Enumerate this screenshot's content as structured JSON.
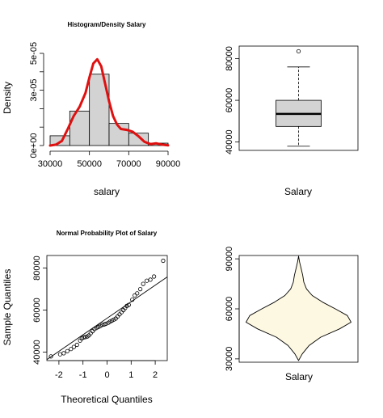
{
  "colors": {
    "bar_fill": "#d3d3d3",
    "density_line": "#e01010",
    "violin_fill": "#fdf8e2",
    "qq_line": "#000000"
  },
  "chart_data": [
    {
      "type": "bar",
      "subtype": "histogram_with_density",
      "title": "Histogram/Density Salary",
      "xlabel": "salary",
      "ylabel": "Density",
      "xlim": [
        30000,
        90000
      ],
      "ylim": [
        0,
        5e-05
      ],
      "x_ticks": [
        30000,
        50000,
        70000,
        90000
      ],
      "x_tick_labels": [
        "30000",
        "50000",
        "70000",
        "90000"
      ],
      "y_ticks": [
        0,
        1e-05,
        2e-05,
        3e-05,
        4e-05,
        5e-05
      ],
      "y_tick_labels": [
        "0e+00",
        "",
        "",
        "3e-05",
        "",
        "5e-05"
      ],
      "bins": [
        {
          "x0": 30000,
          "x1": 40000,
          "value": 5.3e-06
        },
        {
          "x0": 40000,
          "x1": 50000,
          "value": 1.87e-05
        },
        {
          "x0": 50000,
          "x1": 60000,
          "value": 3.87e-05
        },
        {
          "x0": 60000,
          "x1": 70000,
          "value": 1.2e-05
        },
        {
          "x0": 70000,
          "x1": 80000,
          "value": 6.7e-06
        },
        {
          "x0": 80000,
          "x1": 90000,
          "value": 1.3e-06
        }
      ],
      "density": {
        "x": [
          30000,
          33000,
          36000,
          39000,
          42000,
          45000,
          48000,
          50000,
          52000,
          54000,
          56000,
          58000,
          60000,
          62000,
          64000,
          66000,
          69000,
          72000,
          75000,
          78000,
          81000,
          84000,
          87000,
          90000
        ],
        "y": [
          0,
          5e-07,
          2.5e-06,
          9e-06,
          1.6e-05,
          2.1e-05,
          2.85e-05,
          3.7e-05,
          4.45e-05,
          4.68e-05,
          4.3e-05,
          3.35e-05,
          2.4e-05,
          1.6e-05,
          1.15e-05,
          9e-06,
          8.5e-06,
          7.5e-06,
          5e-06,
          2e-06,
          8e-07,
          1.2e-06,
          5e-07,
          1e-07
        ]
      }
    },
    {
      "type": "box",
      "xlabel": "Salary",
      "ylim": [
        36000,
        86000
      ],
      "y_ticks": [
        40000,
        60000,
        80000
      ],
      "y_tick_labels": [
        "40000",
        "60000",
        "80000"
      ],
      "min": 38000,
      "q1": 47500,
      "median": 53500,
      "q3": 60000,
      "max": 76000,
      "outliers": [
        83500
      ]
    },
    {
      "type": "scatter",
      "subtype": "qq_plot",
      "title": "Normal Probability Plot of Salary",
      "xlabel": "Theoretical Quantiles",
      "ylabel": "Sample Quantiles",
      "xlim": [
        -2.5,
        2.5
      ],
      "ylim": [
        36000,
        86000
      ],
      "x_ticks": [
        -2,
        -1,
        0,
        1,
        2
      ],
      "x_tick_labels": [
        "-2",
        "-1",
        "0",
        "1",
        "2"
      ],
      "y_ticks": [
        40000,
        60000,
        80000
      ],
      "y_tick_labels": [
        "40000",
        "60000",
        "80000"
      ],
      "points": [
        [
          -2.33,
          38000
        ],
        [
          -1.95,
          39000
        ],
        [
          -1.8,
          39500
        ],
        [
          -1.65,
          40500
        ],
        [
          -1.5,
          41500
        ],
        [
          -1.38,
          42500
        ],
        [
          -1.25,
          43500
        ],
        [
          -1.12,
          45500
        ],
        [
          -1.05,
          46500
        ],
        [
          -0.98,
          47000
        ],
        [
          -0.9,
          47200
        ],
        [
          -0.82,
          47500
        ],
        [
          -0.75,
          48000
        ],
        [
          -0.68,
          49000
        ],
        [
          -0.6,
          50000
        ],
        [
          -0.52,
          51000
        ],
        [
          -0.44,
          51500
        ],
        [
          -0.36,
          52000
        ],
        [
          -0.28,
          52500
        ],
        [
          -0.2,
          53000
        ],
        [
          -0.12,
          53200
        ],
        [
          -0.05,
          53500
        ],
        [
          0.05,
          54000
        ],
        [
          0.12,
          54500
        ],
        [
          0.2,
          55000
        ],
        [
          0.28,
          55500
        ],
        [
          0.36,
          56000
        ],
        [
          0.44,
          57000
        ],
        [
          0.52,
          58000
        ],
        [
          0.6,
          59000
        ],
        [
          0.68,
          60000
        ],
        [
          0.75,
          61000
        ],
        [
          0.82,
          62000
        ],
        [
          0.9,
          62500
        ],
        [
          1.05,
          65000
        ],
        [
          1.15,
          67000
        ],
        [
          1.25,
          68000
        ],
        [
          1.38,
          70000
        ],
        [
          1.5,
          72500
        ],
        [
          1.65,
          74000
        ],
        [
          1.8,
          74500
        ],
        [
          1.95,
          76000
        ],
        [
          2.33,
          83500
        ]
      ],
      "reference_line": {
        "x": [
          -2.5,
          2.5
        ],
        "y": [
          36500,
          75800
        ]
      }
    },
    {
      "type": "violin",
      "xlabel": "Salary",
      "ylim": [
        28000,
        92000
      ],
      "y_ticks": [
        30000,
        60000,
        90000
      ],
      "y_tick_labels": [
        "30000",
        "60000",
        "90000"
      ],
      "profile": [
        [
          29000,
          0.0
        ],
        [
          33000,
          0.07
        ],
        [
          38000,
          0.2
        ],
        [
          43000,
          0.42
        ],
        [
          48000,
          0.78
        ],
        [
          52000,
          1.0
        ],
        [
          56000,
          0.93
        ],
        [
          60000,
          0.7
        ],
        [
          64000,
          0.46
        ],
        [
          68000,
          0.26
        ],
        [
          72000,
          0.15
        ],
        [
          76000,
          0.1
        ],
        [
          80000,
          0.08
        ],
        [
          84000,
          0.05
        ],
        [
          88000,
          0.02
        ],
        [
          91500,
          0.0
        ]
      ]
    }
  ]
}
